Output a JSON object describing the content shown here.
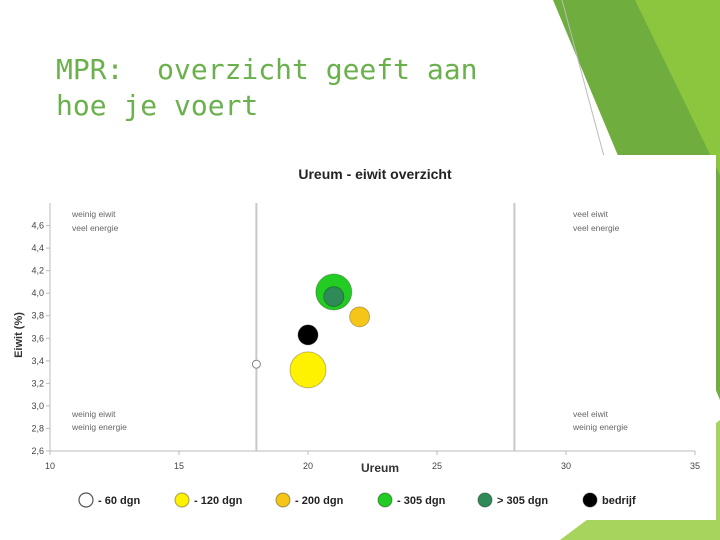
{
  "slide": {
    "title_lines": [
      "MPR:  overzicht geeft aan",
      "hoe je voert"
    ],
    "accent_colors": [
      "#6fae3e",
      "#8cc63f",
      "#a7d45c"
    ]
  },
  "chart_data": {
    "type": "scatter",
    "title": "Ureum - eiwit overzicht",
    "xlabel": "Ureum",
    "ylabel": "Eiwit (%)",
    "xlim": [
      10,
      35
    ],
    "ylim": [
      2.6,
      4.8
    ],
    "xticks": [
      10,
      15,
      20,
      25,
      30,
      35
    ],
    "yticks": [
      "2,6",
      "2,8",
      "3,0",
      "3,2",
      "3,4",
      "3,6",
      "3,8",
      "4,0",
      "4,2",
      "4,4",
      "4,6"
    ],
    "grid": false,
    "reference_lines_x": [
      18,
      28
    ],
    "quadrant_labels": {
      "top_left": [
        "weinig eiwit",
        "veel energie"
      ],
      "top_right": [
        "veel eiwit",
        "veel energie"
      ],
      "bottom_left": [
        "weinig eiwit",
        "weinig energie"
      ],
      "bottom_right": [
        "veel eiwit",
        "weinig energie"
      ]
    },
    "series": [
      {
        "name": "- 60 dgn",
        "color": "#ffffff",
        "x": 18.0,
        "y": 3.37,
        "size": "small"
      },
      {
        "name": "- 120 dgn",
        "color": "#fff200",
        "x": 20.0,
        "y": 3.32,
        "size": "large"
      },
      {
        "name": "- 200 dgn",
        "color": "#f5c518",
        "x": 22.0,
        "y": 3.79,
        "size": "medium"
      },
      {
        "name": "- 305 dgn",
        "color": "#22cc22",
        "x": 21.0,
        "y": 4.01,
        "size": "large"
      },
      {
        "name": "> 305 dgn",
        "color": "#2e8b57",
        "x": 21.0,
        "y": 3.97,
        "size": "medium"
      },
      {
        "name": "bedrijf",
        "color": "#000000",
        "x": 20.0,
        "y": 3.63,
        "size": "medium"
      }
    ],
    "legend_position": "bottom"
  }
}
